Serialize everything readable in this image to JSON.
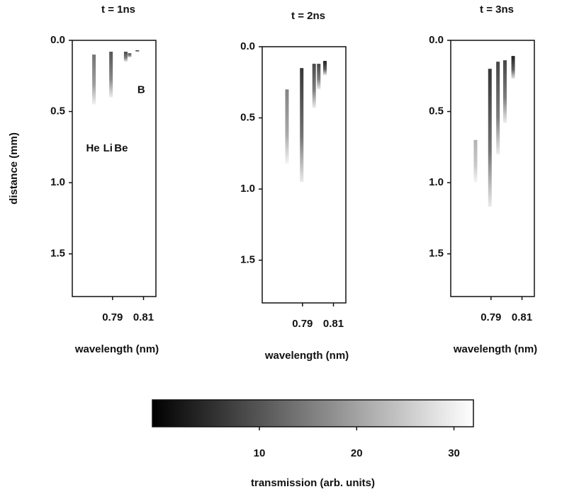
{
  "chart_data": [
    {
      "type": "streak",
      "title": "t = 1ns",
      "xlabel": "wavelength (nm)",
      "ylabel": "distance (mm)",
      "xlim": [
        0.764,
        0.818
      ],
      "xticks": [
        0.79,
        0.81
      ],
      "ylim": [
        0,
        1.8
      ],
      "yticks": [
        {
          "value": 0,
          "label": "0.0"
        },
        0.5,
        {
          "value": 1,
          "label": "1.0"
        },
        1.5
      ],
      "x": [
        0.778,
        0.789,
        0.7985,
        0.801,
        0.806
      ],
      "y_start": [
        0.1,
        0.08,
        0.08,
        0.09,
        0.07
      ],
      "y_end": [
        0.45,
        0.4,
        0.15,
        0.12,
        0.08
      ],
      "values": [
        14,
        10,
        8,
        10,
        4
      ],
      "annotations": [
        {
          "text": "He",
          "x": 0.7773,
          "y": 0.76
        },
        {
          "text": "Li",
          "x": 0.787,
          "y": 0.76
        },
        {
          "text": "Be",
          "x": 0.7955,
          "y": 0.76
        },
        {
          "text": "B",
          "x": 0.8085,
          "y": 0.35
        }
      ]
    },
    {
      "type": "streak",
      "title": "t = 2ns",
      "xlabel": "wavelength (nm)",
      "xlim": [
        0.764,
        0.818
      ],
      "xticks": [
        0.79,
        0.81
      ],
      "ylim": [
        0,
        1.8
      ],
      "yticks": [
        {
          "value": 0,
          "label": "0.0"
        },
        0.5,
        {
          "value": 1,
          "label": "1.0"
        },
        1.5
      ],
      "x": [
        0.78,
        0.7895,
        0.7975,
        0.8005,
        0.8045
      ],
      "y_start": [
        0.3,
        0.15,
        0.12,
        0.12,
        0.1
      ],
      "y_end": [
        0.82,
        0.95,
        0.43,
        0.3,
        0.2
      ],
      "values": [
        16,
        6,
        8,
        8,
        3
      ]
    },
    {
      "type": "streak",
      "title": "t = 3ns",
      "xlabel": "wavelength (nm)",
      "xlim": [
        0.764,
        0.818
      ],
      "xticks": [
        0.79,
        0.81
      ],
      "ylim": [
        0,
        1.8
      ],
      "yticks": [
        {
          "value": 0,
          "label": "0.0"
        },
        0.5,
        {
          "value": 1,
          "label": "1.0"
        },
        1.5
      ],
      "x": [
        0.78,
        0.7893,
        0.7945,
        0.799,
        0.8043
      ],
      "y_start": [
        0.7,
        0.2,
        0.15,
        0.14,
        0.11
      ],
      "y_end": [
        1.0,
        1.17,
        0.8,
        0.58,
        0.27
      ],
      "values": [
        22,
        6,
        8,
        8,
        3
      ]
    },
    {
      "type": "colorbar",
      "xlabel": "transmission (arb. units)",
      "xlim": [
        -1,
        32
      ],
      "xticks": [
        10,
        20,
        30
      ]
    }
  ]
}
